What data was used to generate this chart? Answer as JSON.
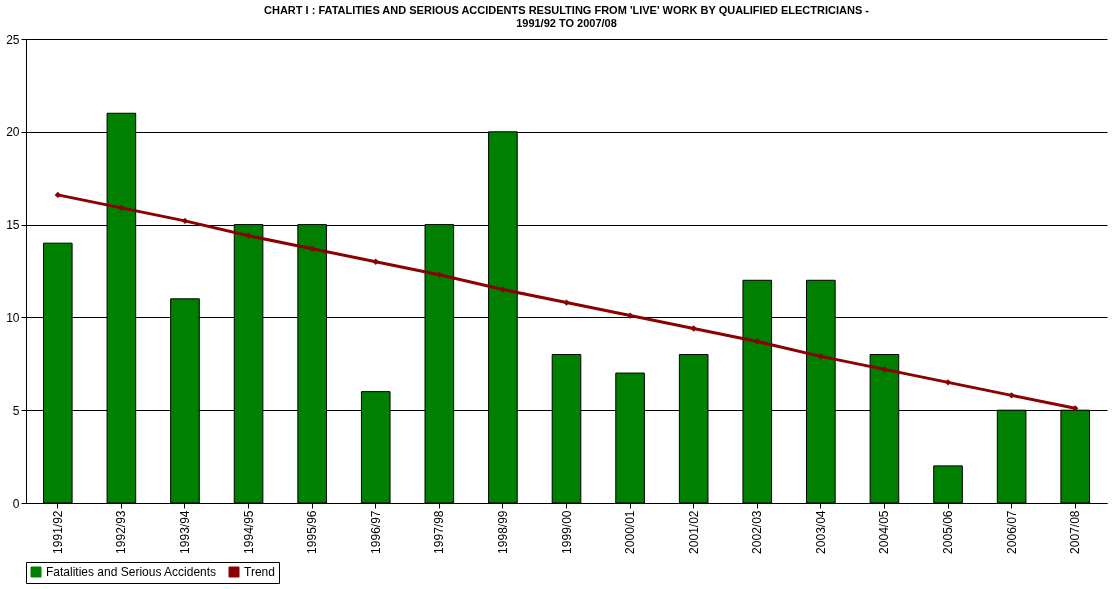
{
  "chart_data": {
    "type": "bar",
    "title": [
      "CHART I : FATALITIES AND SERIOUS ACCIDENTS RESULTING FROM 'LIVE' WORK BY QUALIFIED ELECTRICIANS  -",
      "1991/92 TO 2007/08"
    ],
    "categories": [
      "1991/92",
      "1992/93",
      "1993/94",
      "1994/95",
      "1995/96",
      "1996/97",
      "1997/98",
      "1998/99",
      "1999/00",
      "2000/01",
      "2001/02",
      "2002/03",
      "2003/04",
      "2004/05",
      "2005/06",
      "2006/07",
      "2007/08"
    ],
    "series": [
      {
        "name": "Fatalities and Serious Accidents",
        "color": "#008000",
        "values": [
          14,
          21,
          11,
          15,
          15,
          6,
          15,
          20,
          8,
          7,
          8,
          12,
          12,
          8,
          2,
          5,
          5
        ]
      },
      {
        "name": "Trend",
        "type": "line",
        "color": "#8b0000",
        "marker": "diamond",
        "values": [
          16.6,
          15.9,
          15.2,
          14.4,
          13.7,
          13.0,
          12.3,
          11.5,
          10.8,
          10.1,
          9.4,
          8.7,
          7.9,
          7.2,
          6.5,
          5.8,
          5.1
        ]
      }
    ],
    "ylim": [
      0,
      25
    ],
    "yticks": [
      0,
      5,
      10,
      15,
      20,
      25
    ],
    "grid": "y",
    "legend": "bottom left"
  }
}
